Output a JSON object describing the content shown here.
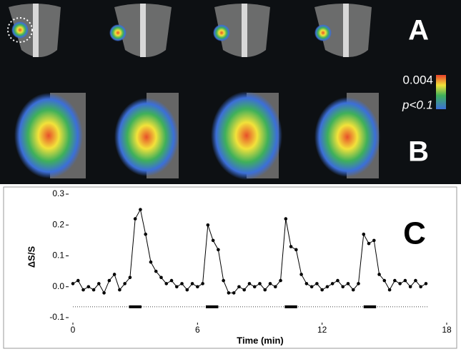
{
  "panels": {
    "top_label": "A",
    "bottom_label": "B",
    "scale_max": "0.004",
    "scale_min": "p<0.1"
  },
  "chart_data": {
    "type": "line",
    "annotation": "C",
    "xlabel": "Time (min)",
    "ylabel": "ΔS/S",
    "x": [
      0,
      0.25,
      0.5,
      0.75,
      1,
      1.25,
      1.5,
      1.75,
      2,
      2.25,
      2.5,
      2.75,
      3,
      3.25,
      3.5,
      3.75,
      4,
      4.25,
      4.5,
      4.75,
      5,
      5.25,
      5.5,
      5.75,
      6,
      6.25,
      6.5,
      6.75,
      7,
      7.25,
      7.5,
      7.75,
      8,
      8.25,
      8.5,
      8.75,
      9,
      9.25,
      9.5,
      9.75,
      10,
      10.25,
      10.5,
      10.75,
      11,
      11.25,
      11.5,
      11.75,
      12,
      12.25,
      12.5,
      12.75,
      13,
      13.25,
      13.5,
      13.75,
      14,
      14.25,
      14.5,
      14.75,
      15,
      15.25,
      15.5,
      15.75,
      16,
      16.25,
      16.5,
      16.75,
      17
    ],
    "values": [
      0.01,
      0.02,
      -0.01,
      0,
      -0.01,
      0.01,
      -0.02,
      0.02,
      0.04,
      -0.01,
      0.01,
      0.03,
      0.22,
      0.25,
      0.17,
      0.08,
      0.05,
      0.03,
      0.01,
      0.02,
      0,
      0.01,
      -0.01,
      0.01,
      0,
      0.01,
      0.2,
      0.15,
      0.12,
      0.02,
      -0.02,
      -0.02,
      0,
      -0.01,
      0.01,
      0,
      0.01,
      -0.01,
      0.01,
      0,
      0.02,
      0.22,
      0.13,
      0.12,
      0.04,
      0.01,
      0,
      0.01,
      -0.01,
      0,
      0.01,
      0.02,
      0,
      0.01,
      -0.01,
      0.01,
      0.17,
      0.14,
      0.15,
      0.04,
      0.02,
      -0.01,
      0.02,
      0.01,
      0.02,
      0,
      0.02,
      0,
      0.01
    ],
    "color": "#000000",
    "stimulus": {
      "level": -0.065,
      "blocks": [
        [
          2.7,
          3.3
        ],
        [
          6.4,
          7.0
        ],
        [
          10.2,
          10.8
        ],
        [
          14.0,
          14.6
        ]
      ]
    },
    "xlim": [
      0,
      18
    ],
    "xticks": [
      0,
      6,
      12,
      18
    ],
    "ylim": [
      -0.1,
      0.3
    ],
    "yticks": [
      {
        "value": -0.1,
        "label": "-0.1"
      },
      {
        "value": 0,
        "label": "0.0"
      },
      0.1,
      0.2,
      0.3
    ]
  }
}
